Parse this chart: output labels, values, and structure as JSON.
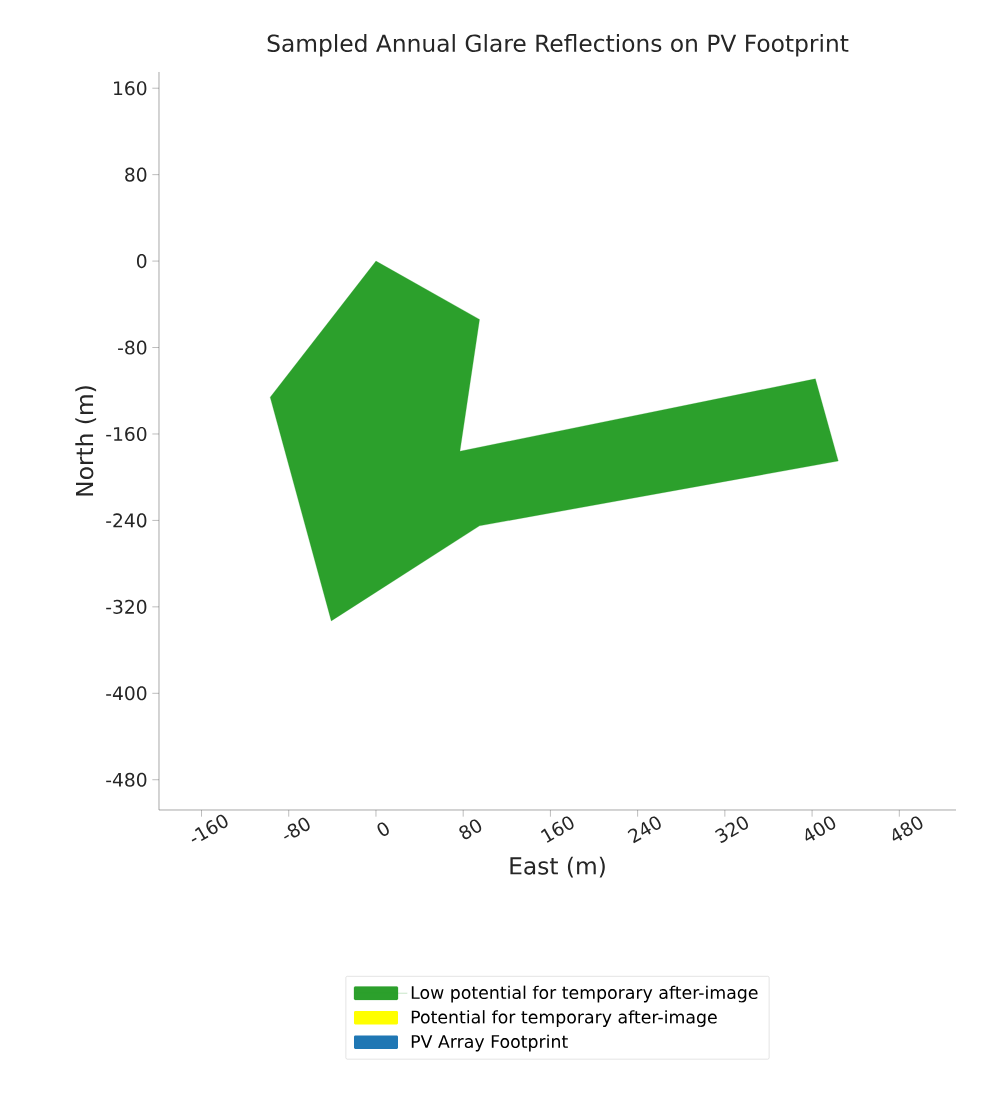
{
  "chart_data": {
    "type": "area",
    "title": "Sampled Annual Glare Reflections on PV Footprint",
    "xlabel": "East (m)",
    "ylabel": "North (m)",
    "series": [
      {
        "name": "Low potential for temporary after-image",
        "color": "#2ca02c",
        "x": [
          0,
          95,
          77,
          403,
          424,
          95,
          -41,
          -97
        ],
        "values": [
          0,
          -54,
          -176,
          -109,
          -185,
          -245,
          -333,
          -126
        ]
      },
      {
        "name": "Potential for temporary after-image",
        "color": "#ffff00"
      },
      {
        "name": "PV Array Footprint",
        "color": "#1f77b4"
      }
    ],
    "xlim": [
      -199,
      532
    ],
    "ylim": [
      -508,
      175
    ],
    "xticks": [
      -160,
      -80,
      0,
      80,
      160,
      240,
      320,
      400,
      480
    ],
    "yticks": [
      160,
      80,
      0,
      -80,
      -160,
      -240,
      -320,
      -400,
      -480
    ],
    "grid": false,
    "legend": "bottom"
  }
}
